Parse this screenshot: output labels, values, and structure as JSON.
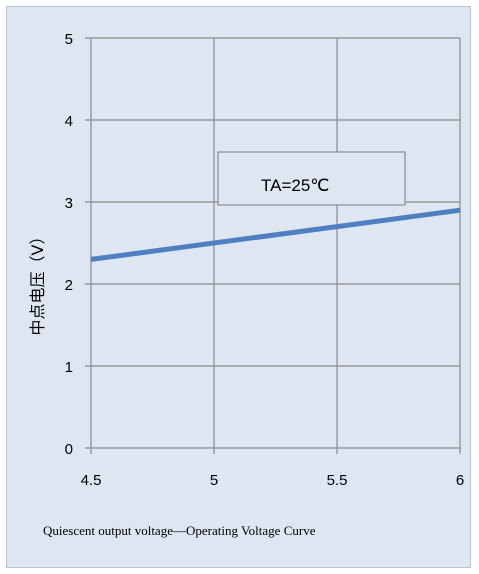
{
  "chart_data": {
    "type": "line",
    "x": [
      4.5,
      6
    ],
    "series": [
      {
        "values": [
          2.3,
          2.9
        ],
        "color": "#4f7fc0"
      }
    ],
    "xlim": [
      4.5,
      6
    ],
    "ylim": [
      0,
      5
    ],
    "xticks": [
      "4.5",
      "5",
      "5.5",
      "6"
    ],
    "yticks": [
      "0",
      "1",
      "2",
      "3",
      "4",
      "5"
    ],
    "ylabel": "中点电压（V）",
    "caption": "Quiescent output voltage—Operating Voltage Curve",
    "annotation": "TA=25℃",
    "grid": true,
    "plot_background": "#dde6f1",
    "grid_color": "#8a8a8a"
  }
}
